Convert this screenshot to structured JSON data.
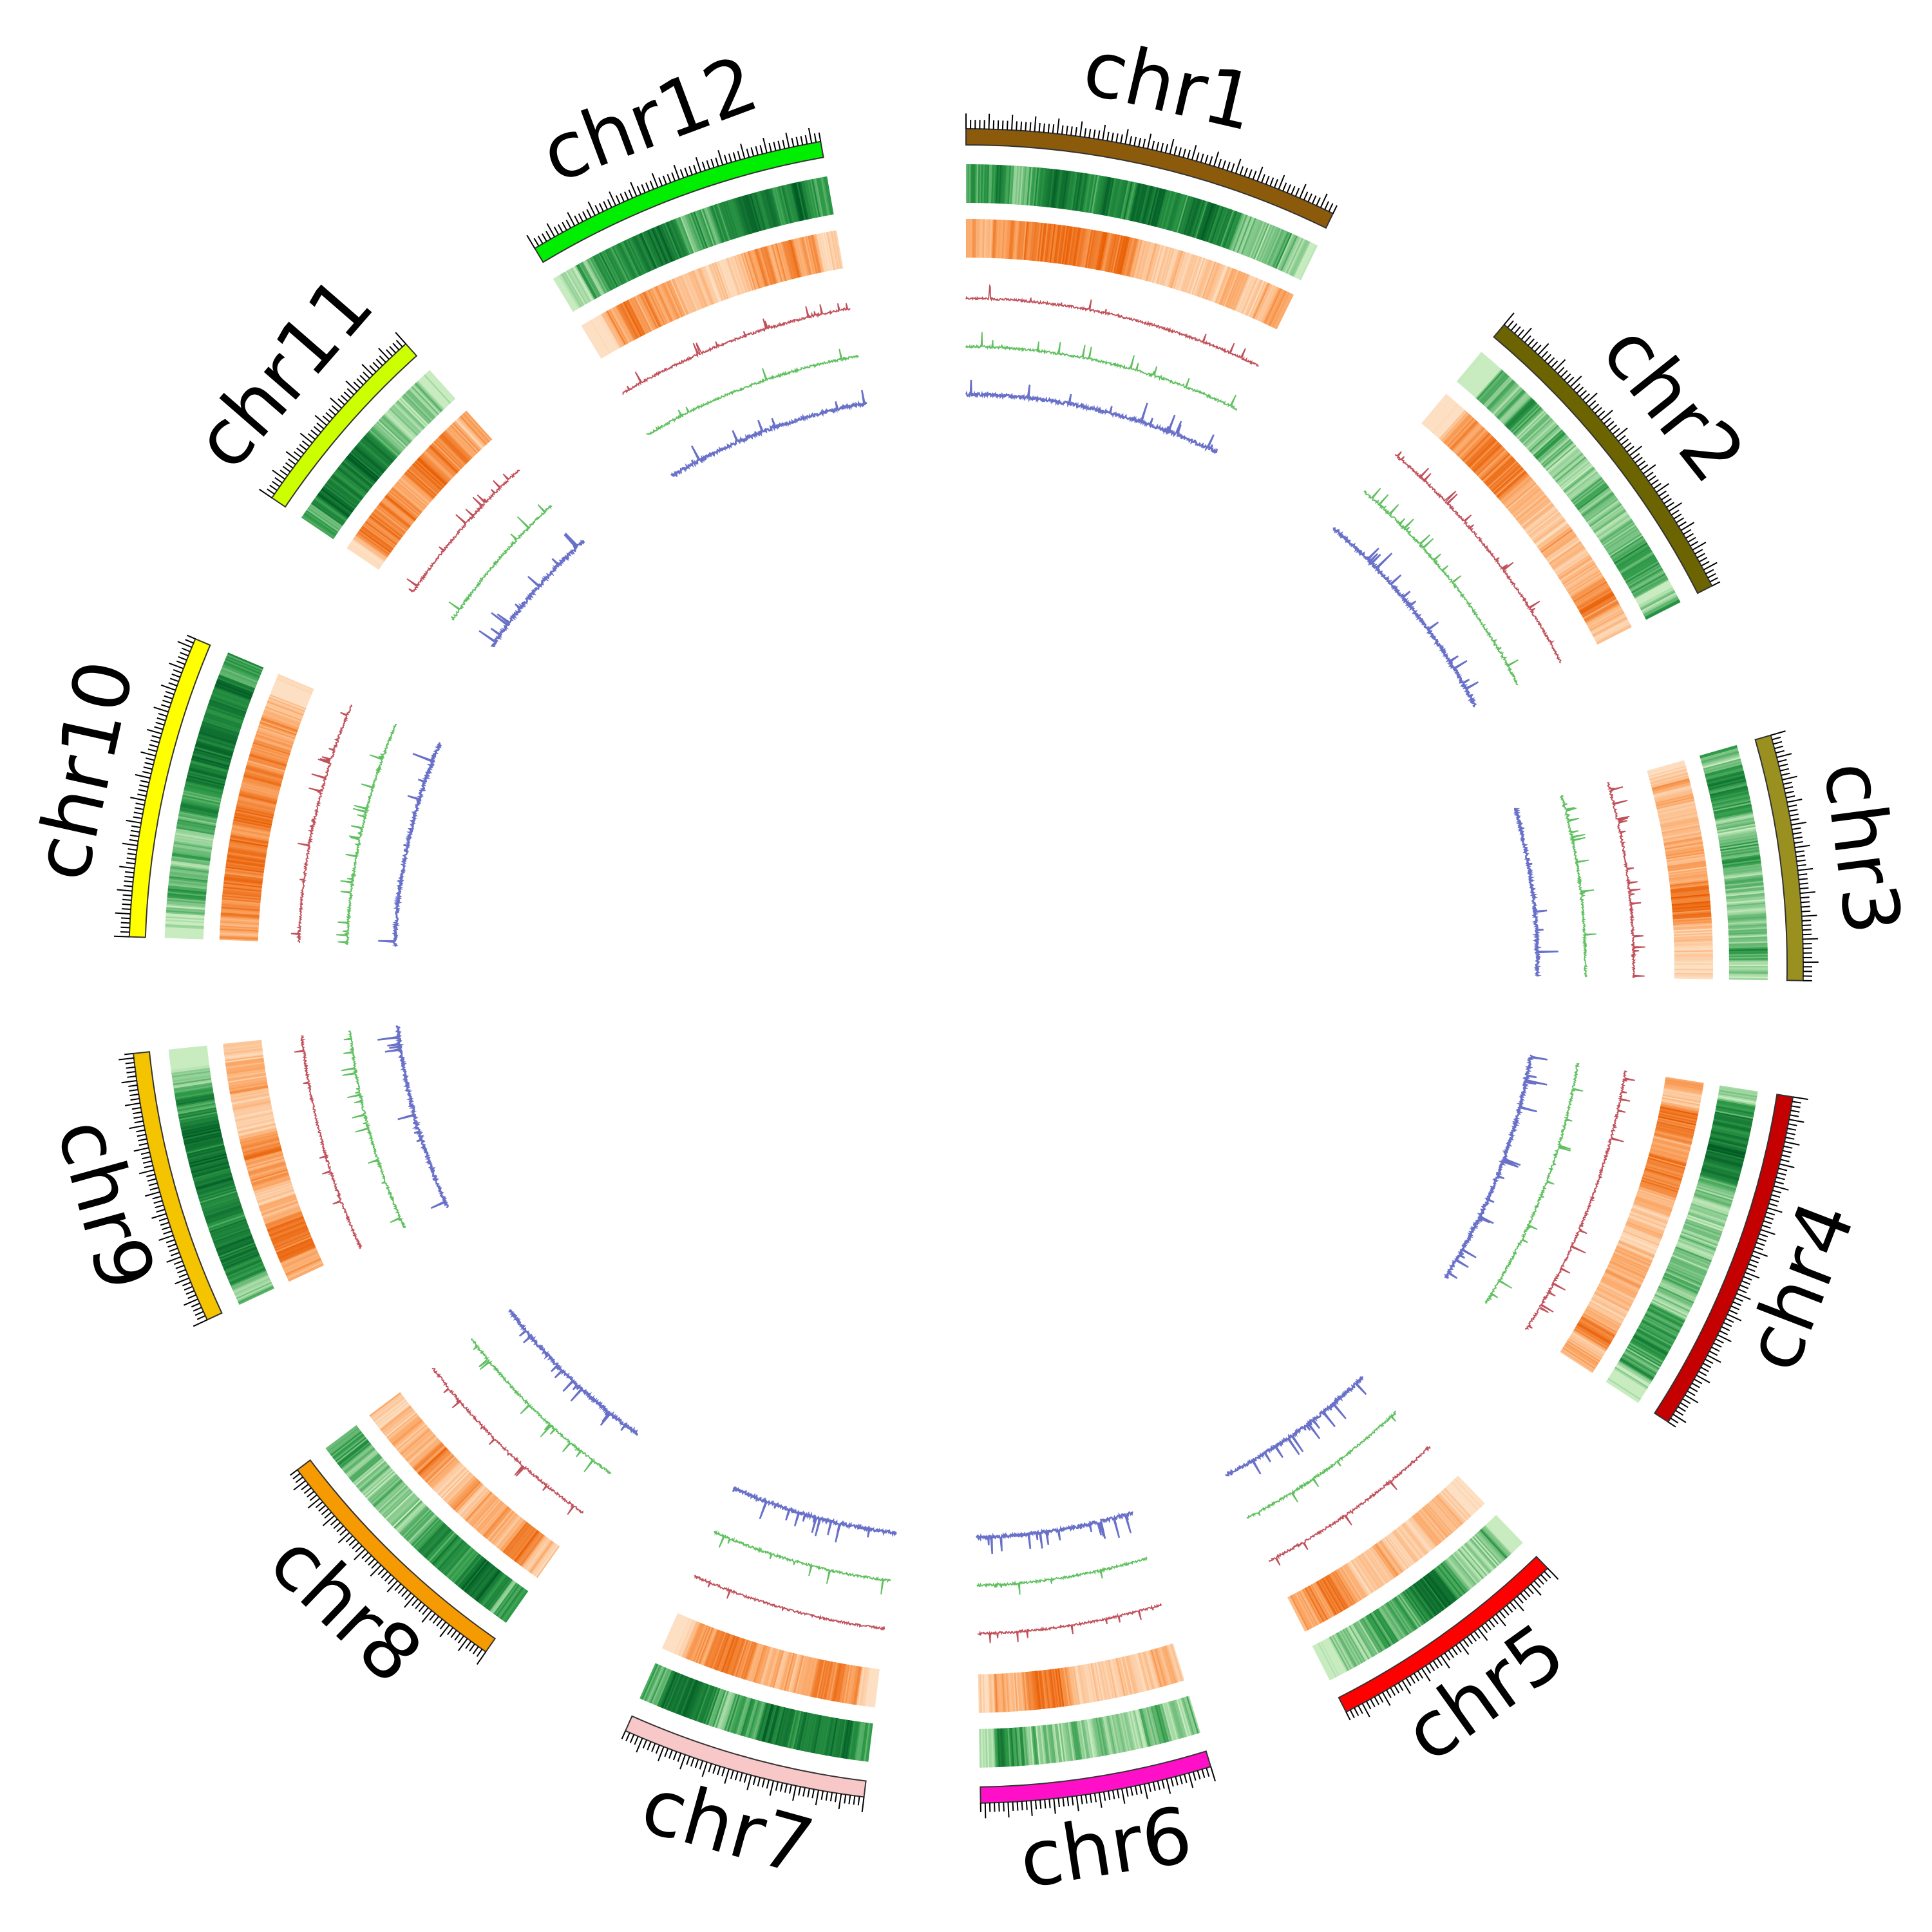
{
  "diagram": {
    "type": "circos",
    "chromosomes": [
      {
        "name": "chr1",
        "color": "#8b5a0a",
        "start_deg": 90,
        "end_deg": 64
      },
      {
        "name": "chr2",
        "color": "#6b6400",
        "start_deg": 50,
        "end_deg": 27
      },
      {
        "name": "chr3",
        "color": "#9a9020",
        "start_deg": 16,
        "end_deg": -1
      },
      {
        "name": "chr4",
        "color": "#c40000",
        "start_deg": -9,
        "end_deg": -33
      },
      {
        "name": "chr5",
        "color": "#ff0000",
        "start_deg": -46,
        "end_deg": -63
      },
      {
        "name": "chr6",
        "color": "#ff10c8",
        "start_deg": -73,
        "end_deg": -89
      },
      {
        "name": "chr7",
        "color": "#f8c8c8",
        "start_deg": -97,
        "end_deg": -114
      },
      {
        "name": "chr8",
        "color": "#f59a00",
        "start_deg": -125,
        "end_deg": -143
      },
      {
        "name": "chr9",
        "color": "#f5c400",
        "start_deg": -155,
        "end_deg": -174
      },
      {
        "name": "chr10",
        "color": "#ffff00",
        "start_deg": 178,
        "end_deg": 157
      },
      {
        "name": "chr11",
        "color": "#ccff00",
        "start_deg": 146,
        "end_deg": 132
      },
      {
        "name": "chr12",
        "color": "#00ee00",
        "start_deg": 121,
        "end_deg": 100
      }
    ],
    "tracks": [
      {
        "kind": "ideogram"
      },
      {
        "kind": "heatmap",
        "palette": [
          "#c8ecc0",
          "#2e9a48",
          "#005a24"
        ]
      },
      {
        "kind": "heatmap",
        "palette": [
          "#fde0c4",
          "#fba766",
          "#e85c00"
        ]
      },
      {
        "kind": "line",
        "color": "#c0505a"
      },
      {
        "kind": "line",
        "color": "#60c060"
      },
      {
        "kind": "line",
        "color": "#6870c8"
      }
    ]
  }
}
